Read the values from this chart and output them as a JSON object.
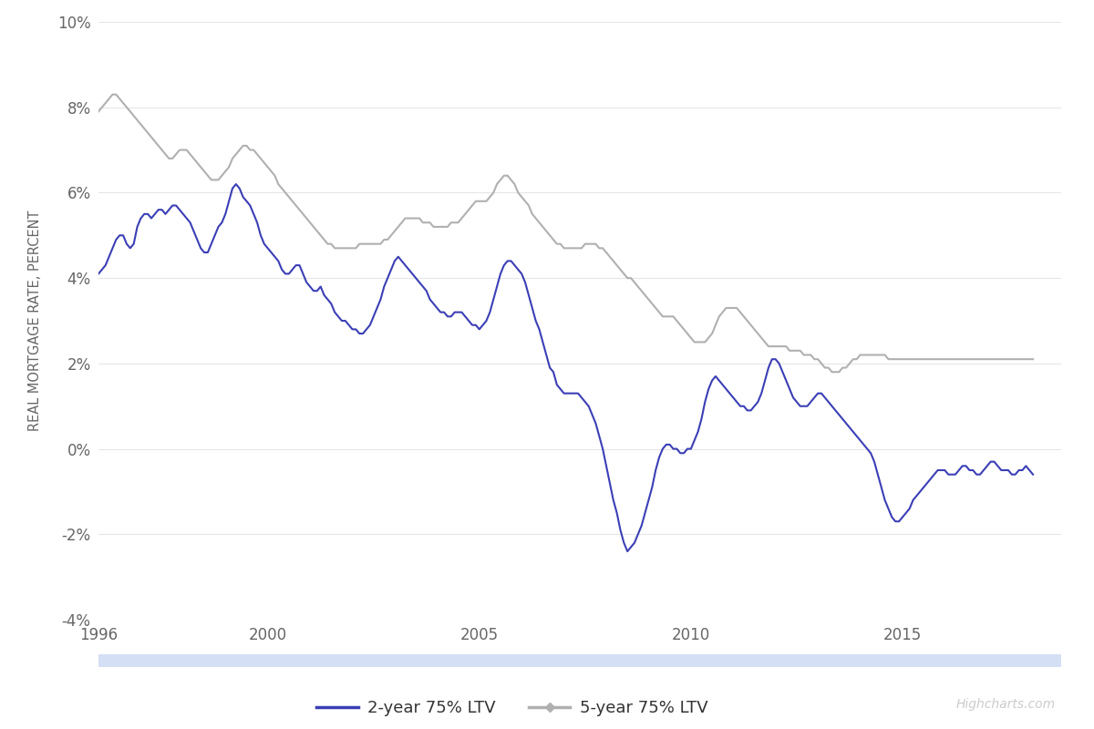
{
  "title": "",
  "ylabel": "REAL MORTGAGE RATE, PERCENT",
  "background_color": "#ffffff",
  "plot_bg_color": "#ffffff",
  "grid_color": "#e6e6e6",
  "line_2yr_color": "#3b3fb5",
  "line_5yr_color": "#b0b0b0",
  "ylim": [
    -4,
    10
  ],
  "yticks": [
    -4,
    -2,
    0,
    2,
    4,
    6,
    8,
    10
  ],
  "legend_labels": [
    "2-year 75% LTV",
    "5-year 75% LTV"
  ],
  "watermark": "Highcharts.com",
  "xtick_positions": [
    1996,
    2000,
    2005,
    2010,
    2015
  ],
  "xlim": [
    1996,
    2018.75
  ],
  "navigator_color": "#d4dff5",
  "vals_2yr": [
    4.1,
    4.2,
    4.3,
    4.5,
    4.7,
    4.9,
    5.0,
    5.0,
    4.8,
    4.7,
    4.8,
    5.2,
    5.4,
    5.5,
    5.5,
    5.4,
    5.5,
    5.6,
    5.6,
    5.5,
    5.6,
    5.7,
    5.7,
    5.6,
    5.5,
    5.4,
    5.3,
    5.1,
    4.9,
    4.7,
    4.6,
    4.6,
    4.8,
    5.0,
    5.2,
    5.3,
    5.5,
    5.8,
    6.1,
    6.2,
    6.1,
    5.9,
    5.8,
    5.7,
    5.5,
    5.3,
    5.0,
    4.8,
    4.7,
    4.6,
    4.5,
    4.4,
    4.2,
    4.1,
    4.1,
    4.2,
    4.3,
    4.3,
    4.1,
    3.9,
    3.8,
    3.7,
    3.7,
    3.8,
    3.6,
    3.5,
    3.4,
    3.2,
    3.1,
    3.0,
    3.0,
    2.9,
    2.8,
    2.8,
    2.7,
    2.7,
    2.8,
    2.9,
    3.1,
    3.3,
    3.5,
    3.8,
    4.0,
    4.2,
    4.4,
    4.5,
    4.4,
    4.3,
    4.2,
    4.1,
    4.0,
    3.9,
    3.8,
    3.7,
    3.5,
    3.4,
    3.3,
    3.2,
    3.2,
    3.1,
    3.1,
    3.2,
    3.2,
    3.2,
    3.1,
    3.0,
    2.9,
    2.9,
    2.8,
    2.9,
    3.0,
    3.2,
    3.5,
    3.8,
    4.1,
    4.3,
    4.4,
    4.4,
    4.3,
    4.2,
    4.1,
    3.9,
    3.6,
    3.3,
    3.0,
    2.8,
    2.5,
    2.2,
    1.9,
    1.8,
    1.5,
    1.4,
    1.3,
    1.3,
    1.3,
    1.3,
    1.3,
    1.2,
    1.1,
    1.0,
    0.8,
    0.6,
    0.3,
    0.0,
    -0.4,
    -0.8,
    -1.2,
    -1.5,
    -1.9,
    -2.2,
    -2.4,
    -2.3,
    -2.2,
    -2.0,
    -1.8,
    -1.5,
    -1.2,
    -0.9,
    -0.5,
    -0.2,
    0.0,
    0.1,
    0.1,
    0.0,
    0.0,
    -0.1,
    -0.1,
    0.0,
    0.0,
    0.2,
    0.4,
    0.7,
    1.1,
    1.4,
    1.6,
    1.7,
    1.6,
    1.5,
    1.4,
    1.3,
    1.2,
    1.1,
    1.0,
    1.0,
    0.9,
    0.9,
    1.0,
    1.1,
    1.3,
    1.6,
    1.9,
    2.1,
    2.1,
    2.0,
    1.8,
    1.6,
    1.4,
    1.2,
    1.1,
    1.0,
    1.0,
    1.0,
    1.1,
    1.2,
    1.3,
    1.3,
    1.2,
    1.1,
    1.0,
    0.9,
    0.8,
    0.7,
    0.6,
    0.5,
    0.4,
    0.3,
    0.2,
    0.1,
    0.0,
    -0.1,
    -0.3,
    -0.6,
    -0.9,
    -1.2,
    -1.4,
    -1.6,
    -1.7,
    -1.7,
    -1.6,
    -1.5,
    -1.4,
    -1.2,
    -1.1,
    -1.0,
    -0.9,
    -0.8,
    -0.7,
    -0.6,
    -0.5,
    -0.5,
    -0.5,
    -0.6,
    -0.6,
    -0.6,
    -0.5,
    -0.4,
    -0.4,
    -0.5,
    -0.5,
    -0.6,
    -0.6,
    -0.5,
    -0.4,
    -0.3,
    -0.3,
    -0.4,
    -0.5,
    -0.5,
    -0.5,
    -0.6,
    -0.6,
    -0.5,
    -0.5,
    -0.4,
    -0.5,
    -0.6
  ],
  "vals_5yr": [
    7.9,
    8.0,
    8.1,
    8.2,
    8.3,
    8.3,
    8.2,
    8.1,
    8.0,
    7.9,
    7.8,
    7.7,
    7.6,
    7.5,
    7.4,
    7.3,
    7.2,
    7.1,
    7.0,
    6.9,
    6.8,
    6.8,
    6.9,
    7.0,
    7.0,
    7.0,
    6.9,
    6.8,
    6.7,
    6.6,
    6.5,
    6.4,
    6.3,
    6.3,
    6.3,
    6.4,
    6.5,
    6.6,
    6.8,
    6.9,
    7.0,
    7.1,
    7.1,
    7.0,
    7.0,
    6.9,
    6.8,
    6.7,
    6.6,
    6.5,
    6.4,
    6.2,
    6.1,
    6.0,
    5.9,
    5.8,
    5.7,
    5.6,
    5.5,
    5.4,
    5.3,
    5.2,
    5.1,
    5.0,
    4.9,
    4.8,
    4.8,
    4.7,
    4.7,
    4.7,
    4.7,
    4.7,
    4.7,
    4.7,
    4.8,
    4.8,
    4.8,
    4.8,
    4.8,
    4.8,
    4.8,
    4.9,
    4.9,
    5.0,
    5.1,
    5.2,
    5.3,
    5.4,
    5.4,
    5.4,
    5.4,
    5.4,
    5.3,
    5.3,
    5.3,
    5.2,
    5.2,
    5.2,
    5.2,
    5.2,
    5.3,
    5.3,
    5.3,
    5.4,
    5.5,
    5.6,
    5.7,
    5.8,
    5.8,
    5.8,
    5.8,
    5.9,
    6.0,
    6.2,
    6.3,
    6.4,
    6.4,
    6.3,
    6.2,
    6.0,
    5.9,
    5.8,
    5.7,
    5.5,
    5.4,
    5.3,
    5.2,
    5.1,
    5.0,
    4.9,
    4.8,
    4.8,
    4.7,
    4.7,
    4.7,
    4.7,
    4.7,
    4.7,
    4.8,
    4.8,
    4.8,
    4.8,
    4.7,
    4.7,
    4.6,
    4.5,
    4.4,
    4.3,
    4.2,
    4.1,
    4.0,
    4.0,
    3.9,
    3.8,
    3.7,
    3.6,
    3.5,
    3.4,
    3.3,
    3.2,
    3.1,
    3.1,
    3.1,
    3.1,
    3.0,
    2.9,
    2.8,
    2.7,
    2.6,
    2.5,
    2.5,
    2.5,
    2.5,
    2.6,
    2.7,
    2.9,
    3.1,
    3.2,
    3.3,
    3.3,
    3.3,
    3.3,
    3.2,
    3.1,
    3.0,
    2.9,
    2.8,
    2.7,
    2.6,
    2.5,
    2.4,
    2.4,
    2.4,
    2.4,
    2.4,
    2.4,
    2.3,
    2.3,
    2.3,
    2.3,
    2.2,
    2.2,
    2.2,
    2.1,
    2.1,
    2.0,
    1.9,
    1.9,
    1.8,
    1.8,
    1.8,
    1.9,
    1.9,
    2.0,
    2.1,
    2.1,
    2.2,
    2.2,
    2.2,
    2.2,
    2.2,
    2.2,
    2.2,
    2.2,
    2.1,
    2.1,
    2.1,
    2.1,
    2.1,
    2.1,
    2.1,
    2.1,
    2.1,
    2.1,
    2.1,
    2.1,
    2.1,
    2.1,
    2.1,
    2.1,
    2.1,
    2.1,
    2.1,
    2.1,
    2.1,
    2.1,
    2.1,
    2.1,
    2.1,
    2.1,
    2.1,
    2.1,
    2.1,
    2.1,
    2.1,
    2.1,
    2.1,
    2.1,
    2.1,
    2.1,
    2.1,
    2.1,
    2.1,
    2.1,
    2.1,
    2.1
  ]
}
